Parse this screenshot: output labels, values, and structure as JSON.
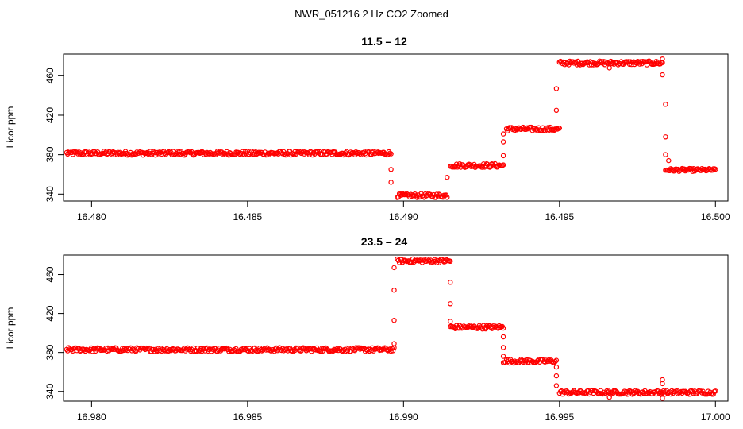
{
  "figure_title": "NWR_051216  2 Hz CO2 Zoomed",
  "colors": {
    "points": "#ff0000",
    "axes": "#000000",
    "background": "#ffffff"
  },
  "chart_data": [
    {
      "type": "scatter",
      "title": "11.5 – 12",
      "xlabel": "",
      "ylabel": "Licor ppm",
      "xlim": [
        16.4791,
        16.5004
      ],
      "ylim": [
        333,
        482
      ],
      "xticks": [
        "16.480",
        "16.485",
        "16.490",
        "16.495",
        "16.500"
      ],
      "xtick_values": [
        16.48,
        16.485,
        16.49,
        16.495,
        16.5
      ],
      "yticks": [
        "340",
        "380",
        "420",
        "460"
      ],
      "ytick_values": [
        340,
        380,
        420,
        460
      ],
      "grid": false,
      "series": [
        {
          "segments": [
            {
              "x_start": 16.4792,
              "x_end": 16.4896,
              "y": 381.5,
              "noise": 2
            },
            {
              "x_start": 16.4898,
              "x_end": 16.4914,
              "y": 338.5,
              "noise": 2
            },
            {
              "x_start": 16.4915,
              "x_end": 16.4932,
              "y": 369,
              "noise": 2
            },
            {
              "x_start": 16.4933,
              "x_end": 16.495,
              "y": 406,
              "noise": 2
            },
            {
              "x_start": 16.495,
              "x_end": 16.4983,
              "y": 473,
              "noise": 2
            },
            {
              "x_start": 16.4984,
              "x_end": 16.5,
              "y": 364.5,
              "noise": 1.5
            }
          ],
          "transitions": [
            {
              "x": 16.4896,
              "y": 365
            },
            {
              "x": 16.4896,
              "y": 352
            },
            {
              "x": 16.4914,
              "y": 357
            },
            {
              "x": 16.4932,
              "y": 379
            },
            {
              "x": 16.4932,
              "y": 393
            },
            {
              "x": 16.4932,
              "y": 401
            },
            {
              "x": 16.4949,
              "y": 425
            },
            {
              "x": 16.4949,
              "y": 447
            },
            {
              "x": 16.4966,
              "y": 468
            },
            {
              "x": 16.4983,
              "y": 477
            },
            {
              "x": 16.4983,
              "y": 461
            },
            {
              "x": 16.4984,
              "y": 431
            },
            {
              "x": 16.4984,
              "y": 398
            },
            {
              "x": 16.4984,
              "y": 380
            },
            {
              "x": 16.4985,
              "y": 374
            }
          ]
        }
      ]
    },
    {
      "type": "scatter",
      "title": "23.5 – 24",
      "xlabel": "",
      "ylabel": "Licor ppm",
      "xlim": [
        16.9791,
        17.0004
      ],
      "ylim": [
        330,
        480
      ],
      "xticks": [
        "16.980",
        "16.985",
        "16.990",
        "16.995",
        "17.000"
      ],
      "xtick_values": [
        16.98,
        16.985,
        16.99,
        16.995,
        17.0
      ],
      "yticks": [
        "340",
        "380",
        "420",
        "460"
      ],
      "ytick_values": [
        340,
        380,
        420,
        460
      ],
      "grid": false,
      "series": [
        {
          "segments": [
            {
              "x_start": 16.9792,
              "x_end": 16.9897,
              "y": 383,
              "noise": 2
            },
            {
              "x_start": 16.9898,
              "x_end": 16.9915,
              "y": 474,
              "noise": 2
            },
            {
              "x_start": 16.9915,
              "x_end": 16.9932,
              "y": 406,
              "noise": 2
            },
            {
              "x_start": 16.9932,
              "x_end": 16.9949,
              "y": 371,
              "noise": 2
            },
            {
              "x_start": 16.995,
              "x_end": 16.9983,
              "y": 339,
              "noise": 2
            },
            {
              "x_start": 16.9983,
              "x_end": 17.0,
              "y": 339,
              "noise": 2
            }
          ],
          "transitions": [
            {
              "x": 16.9897,
              "y": 389
            },
            {
              "x": 16.9897,
              "y": 413
            },
            {
              "x": 16.9897,
              "y": 444
            },
            {
              "x": 16.9897,
              "y": 467
            },
            {
              "x": 16.9915,
              "y": 452
            },
            {
              "x": 16.9915,
              "y": 430
            },
            {
              "x": 16.9915,
              "y": 412
            },
            {
              "x": 16.9932,
              "y": 396
            },
            {
              "x": 16.9932,
              "y": 385
            },
            {
              "x": 16.9932,
              "y": 376
            },
            {
              "x": 16.9949,
              "y": 365
            },
            {
              "x": 16.9949,
              "y": 356
            },
            {
              "x": 16.9949,
              "y": 346
            },
            {
              "x": 16.9966,
              "y": 334
            },
            {
              "x": 16.9983,
              "y": 352
            },
            {
              "x": 16.9983,
              "y": 348
            },
            {
              "x": 16.9983,
              "y": 333
            }
          ]
        }
      ]
    }
  ]
}
